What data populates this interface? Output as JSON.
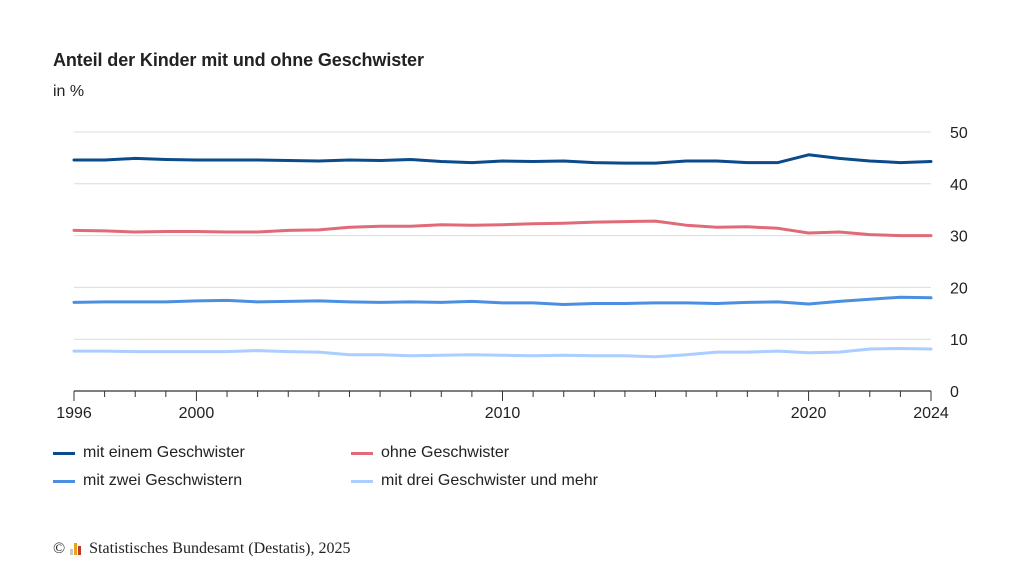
{
  "header": {
    "title": "Anteil der Kinder mit und ohne Geschwister",
    "unit": "in %"
  },
  "source": {
    "copyright": "©",
    "text": "Statistisches Bundesamt (Destatis), 2025",
    "logo_icon": "destatis-logo-icon"
  },
  "chart_data": {
    "type": "line",
    "title": "Anteil der Kinder mit und ohne Geschwister",
    "subtitle": "in %",
    "x": [
      1996,
      1997,
      1998,
      1999,
      2000,
      2001,
      2002,
      2003,
      2004,
      2005,
      2006,
      2007,
      2008,
      2009,
      2010,
      2011,
      2012,
      2013,
      2014,
      2015,
      2016,
      2017,
      2018,
      2019,
      2020,
      2021,
      2022,
      2023,
      2024
    ],
    "x_tick_labels": [
      "1996",
      "2000",
      "2010",
      "2020",
      "2024"
    ],
    "ylim": [
      0,
      50
    ],
    "y_ticks": [
      0,
      10,
      20,
      30,
      40,
      50
    ],
    "grid": true,
    "y_axis_side": "right",
    "legend_position": "bottom",
    "series": [
      {
        "name": "mit einem Geschwister",
        "color": "#0b4a8b",
        "values": [
          44.6,
          44.6,
          44.9,
          44.7,
          44.6,
          44.6,
          44.6,
          44.5,
          44.4,
          44.6,
          44.5,
          44.7,
          44.3,
          44.1,
          44.4,
          44.3,
          44.4,
          44.1,
          44.0,
          44.0,
          44.4,
          44.4,
          44.1,
          44.1,
          45.6,
          44.9,
          44.4,
          44.1,
          44.3
        ]
      },
      {
        "name": "ohne Geschwister",
        "color": "#e06a78",
        "values": [
          31.0,
          30.9,
          30.7,
          30.8,
          30.8,
          30.7,
          30.7,
          31.0,
          31.1,
          31.6,
          31.8,
          31.8,
          32.1,
          32.0,
          32.1,
          32.3,
          32.4,
          32.6,
          32.7,
          32.8,
          32.0,
          31.6,
          31.7,
          31.4,
          30.5,
          30.7,
          30.2,
          30.0,
          30.0
        ]
      },
      {
        "name": "mit zwei Geschwistern",
        "color": "#4a8fe0",
        "values": [
          17.1,
          17.2,
          17.2,
          17.2,
          17.4,
          17.5,
          17.2,
          17.3,
          17.4,
          17.2,
          17.1,
          17.2,
          17.1,
          17.3,
          17.0,
          17.0,
          16.7,
          16.9,
          16.9,
          17.0,
          17.0,
          16.9,
          17.1,
          17.2,
          16.8,
          17.3,
          17.7,
          18.1,
          18.0
        ]
      },
      {
        "name": "mit drei Geschwister und mehr",
        "color": "#a9ceff",
        "values": [
          7.7,
          7.7,
          7.6,
          7.6,
          7.6,
          7.6,
          7.8,
          7.6,
          7.5,
          7.0,
          7.0,
          6.8,
          6.9,
          7.0,
          6.9,
          6.8,
          6.9,
          6.8,
          6.8,
          6.6,
          7.0,
          7.5,
          7.5,
          7.7,
          7.4,
          7.5,
          8.1,
          8.2,
          8.1
        ]
      }
    ]
  }
}
